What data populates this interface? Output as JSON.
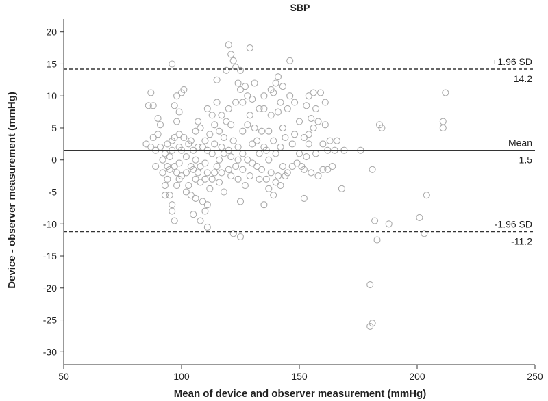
{
  "chart_data": {
    "type": "scatter",
    "title": "SBP",
    "xlabel": "Mean of device and observer measurement (mmHg)",
    "ylabel": "Device - observer measurement (mmHg)",
    "xlim": [
      50,
      250
    ],
    "ylim": [
      -32,
      22
    ],
    "xticks": [
      50,
      100,
      150,
      200,
      250
    ],
    "yticks": [
      20,
      15,
      10,
      5,
      0,
      -5,
      -10,
      -15,
      -20,
      -25,
      -30
    ],
    "grid": false,
    "reference_lines": [
      {
        "label": "+1.96 SD",
        "value": 14.2,
        "value_label": "14.2",
        "style": "dashed"
      },
      {
        "label": "Mean",
        "value": 1.5,
        "value_label": "1.5",
        "style": "solid"
      },
      {
        "label": "-1.96 SD",
        "value": -11.2,
        "value_label": "-11.2",
        "style": "dashed"
      }
    ],
    "marker_color": "#aaaaaa",
    "points": [
      [
        85,
        2.5
      ],
      [
        86,
        8.5
      ],
      [
        87,
        10.5
      ],
      [
        87,
        2
      ],
      [
        88,
        8.5
      ],
      [
        88,
        3.5
      ],
      [
        89,
        -1
      ],
      [
        89,
        1.5
      ],
      [
        90,
        6.5
      ],
      [
        90,
        4
      ],
      [
        91,
        2
      ],
      [
        91,
        5.5
      ],
      [
        92,
        0
      ],
      [
        92,
        -2
      ],
      [
        93,
        -5.5
      ],
      [
        93,
        -4
      ],
      [
        93,
        1
      ],
      [
        94,
        2.5
      ],
      [
        94,
        -1
      ],
      [
        94,
        -3
      ],
      [
        95,
        -1.5
      ],
      [
        95,
        0.5
      ],
      [
        95,
        -5.5
      ],
      [
        96,
        -7
      ],
      [
        96,
        1.5
      ],
      [
        96,
        15
      ],
      [
        96,
        -8
      ],
      [
        96,
        3
      ],
      [
        97,
        -9.5
      ],
      [
        97,
        -1
      ],
      [
        97,
        3.5
      ],
      [
        97,
        8.5
      ],
      [
        98,
        10
      ],
      [
        98,
        -4
      ],
      [
        98,
        -2
      ],
      [
        98,
        6
      ],
      [
        99,
        2
      ],
      [
        99,
        -0.5
      ],
      [
        99,
        -3
      ],
      [
        99,
        4
      ],
      [
        99,
        7.5
      ],
      [
        100,
        10.5
      ],
      [
        100,
        -2.5
      ],
      [
        100,
        1.5
      ],
      [
        101,
        11
      ],
      [
        101,
        3.5
      ],
      [
        102,
        -5
      ],
      [
        102,
        -2
      ],
      [
        102,
        0.5
      ],
      [
        103,
        -4
      ],
      [
        103,
        2.5
      ],
      [
        104,
        -1
      ],
      [
        104,
        3
      ],
      [
        104,
        -5.5
      ],
      [
        105,
        -8.5
      ],
      [
        105,
        -1.5
      ],
      [
        105,
        1.5
      ],
      [
        106,
        -6
      ],
      [
        106,
        -3
      ],
      [
        106,
        0
      ],
      [
        106,
        4.5
      ],
      [
        107,
        -2
      ],
      [
        107,
        2
      ],
      [
        107,
        6
      ],
      [
        108,
        -9.5
      ],
      [
        108,
        -3.5
      ],
      [
        108,
        -1
      ],
      [
        108,
        5
      ],
      [
        109,
        -6.5
      ],
      [
        109,
        2
      ],
      [
        110,
        -8
      ],
      [
        110,
        -3
      ],
      [
        110,
        -0.5
      ],
      [
        110,
        3
      ],
      [
        111,
        -10.5
      ],
      [
        111,
        -7
      ],
      [
        111,
        -2
      ],
      [
        111,
        1.5
      ],
      [
        111,
        8
      ],
      [
        112,
        4
      ],
      [
        112,
        -4.5
      ],
      [
        113,
        1
      ],
      [
        113,
        7
      ],
      [
        113,
        -3
      ],
      [
        114,
        5.5
      ],
      [
        114,
        -2
      ],
      [
        114,
        2.5
      ],
      [
        115,
        9
      ],
      [
        115,
        12.5
      ],
      [
        115,
        -1
      ],
      [
        116,
        0
      ],
      [
        116,
        4.5
      ],
      [
        116,
        -3.5
      ],
      [
        117,
        7
      ],
      [
        117,
        2
      ],
      [
        117,
        -2
      ],
      [
        118,
        -5
      ],
      [
        118,
        3.5
      ],
      [
        118,
        1
      ],
      [
        119,
        6
      ],
      [
        119,
        14
      ],
      [
        120,
        -1.5
      ],
      [
        120,
        1.5
      ],
      [
        120,
        8
      ],
      [
        120,
        18
      ],
      [
        121,
        -2.5
      ],
      [
        121,
        0.5
      ],
      [
        121,
        5.5
      ],
      [
        121,
        16.5
      ],
      [
        122,
        15.5
      ],
      [
        122,
        3
      ],
      [
        122,
        -11.5
      ],
      [
        123,
        14.5
      ],
      [
        123,
        9
      ],
      [
        123,
        -1
      ],
      [
        124,
        2
      ],
      [
        124,
        12
      ],
      [
        124,
        -3
      ],
      [
        124,
        0
      ],
      [
        125,
        -12
      ],
      [
        125,
        -6.5
      ],
      [
        125,
        14
      ],
      [
        125,
        11
      ],
      [
        126,
        1
      ],
      [
        126,
        -1.5
      ],
      [
        126,
        4.5
      ],
      [
        126,
        9
      ],
      [
        127,
        -4
      ],
      [
        127,
        11.5
      ],
      [
        128,
        5.5
      ],
      [
        128,
        10
      ],
      [
        128,
        0
      ],
      [
        129,
        17.5
      ],
      [
        129,
        -2.5
      ],
      [
        129,
        7
      ],
      [
        130,
        9.5
      ],
      [
        130,
        2.5
      ],
      [
        130,
        -0.5
      ],
      [
        131,
        12
      ],
      [
        131,
        5
      ],
      [
        132,
        -1
      ],
      [
        132,
        3
      ],
      [
        133,
        8
      ],
      [
        133,
        -3
      ],
      [
        133,
        1
      ],
      [
        134,
        -1.5
      ],
      [
        134,
        4.5
      ],
      [
        135,
        8
      ],
      [
        135,
        -7
      ],
      [
        135,
        10
      ],
      [
        135,
        2
      ],
      [
        136,
        -3
      ],
      [
        136,
        1.5
      ],
      [
        137,
        4.5
      ],
      [
        137,
        -4.5
      ],
      [
        137,
        0
      ],
      [
        138,
        7
      ],
      [
        138,
        -2
      ],
      [
        138,
        11
      ],
      [
        139,
        -5.5
      ],
      [
        139,
        3
      ],
      [
        139,
        10.5
      ],
      [
        140,
        12
      ],
      [
        140,
        -3.5
      ],
      [
        140,
        1
      ],
      [
        141,
        13
      ],
      [
        141,
        -2.5
      ],
      [
        141,
        7.5
      ],
      [
        142,
        9
      ],
      [
        142,
        -4
      ],
      [
        142,
        2
      ],
      [
        143,
        -1
      ],
      [
        143,
        5
      ],
      [
        143,
        11.5
      ],
      [
        144,
        -2.5
      ],
      [
        144,
        3.5
      ],
      [
        145,
        8
      ],
      [
        145,
        -2
      ],
      [
        146,
        15.5
      ],
      [
        146,
        10
      ],
      [
        147,
        -1
      ],
      [
        147,
        2.5
      ],
      [
        148,
        9
      ],
      [
        148,
        4
      ],
      [
        149,
        -0.5
      ],
      [
        150,
        6
      ],
      [
        150,
        1
      ],
      [
        151,
        -1
      ],
      [
        152,
        -1.5
      ],
      [
        152,
        -6
      ],
      [
        152,
        3.5
      ],
      [
        153,
        8.5
      ],
      [
        153,
        0.5
      ],
      [
        154,
        10
      ],
      [
        154,
        4
      ],
      [
        154,
        2.5
      ],
      [
        155,
        6.5
      ],
      [
        155,
        -2
      ],
      [
        156,
        10.5
      ],
      [
        156,
        5
      ],
      [
        157,
        8
      ],
      [
        157,
        1
      ],
      [
        158,
        -2.5
      ],
      [
        158,
        6
      ],
      [
        159,
        10.5
      ],
      [
        160,
        2.5
      ],
      [
        160,
        -1.5
      ],
      [
        161,
        5.5
      ],
      [
        161,
        9
      ],
      [
        162,
        1.5
      ],
      [
        162,
        -1.5
      ],
      [
        163,
        3
      ],
      [
        164,
        -1
      ],
      [
        165,
        1.5
      ],
      [
        166,
        3
      ],
      [
        168,
        -4.5
      ],
      [
        169,
        1.5
      ],
      [
        176,
        1.5
      ],
      [
        180,
        -19.5
      ],
      [
        181,
        -1.5
      ],
      [
        181,
        -25.5
      ],
      [
        182,
        -9.5
      ],
      [
        183,
        -12.5
      ],
      [
        184,
        5.5
      ],
      [
        185,
        5
      ],
      [
        188,
        -10
      ],
      [
        180,
        -26
      ],
      [
        201,
        -9
      ],
      [
        203,
        -11.5
      ],
      [
        204,
        -5.5
      ],
      [
        211,
        6
      ],
      [
        212,
        10.5
      ],
      [
        211,
        5
      ]
    ]
  }
}
